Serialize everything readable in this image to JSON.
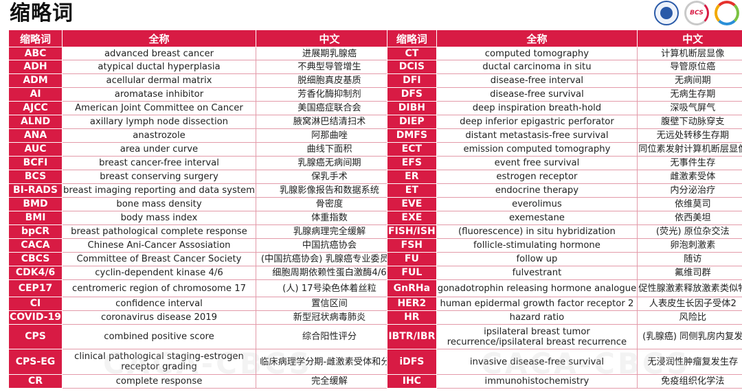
{
  "title": "缩略词",
  "headers": [
    "缩略词",
    "全称",
    "中文"
  ],
  "watermark": "CACA-CBCS",
  "left": [
    [
      "ABC",
      "advanced breast cancer",
      "进展期乳腺癌"
    ],
    [
      "ADH",
      "atypical ductal hyperplasia",
      "不典型导管增生"
    ],
    [
      "ADM",
      "acellular dermal matrix",
      "脱细胞真皮基质"
    ],
    [
      "AI",
      "aromatase inhibitor",
      "芳香化酶抑制剂"
    ],
    [
      "AJCC",
      "American Joint Committee on Cancer",
      "美国癌症联合会"
    ],
    [
      "ALND",
      "axillary lymph node dissection",
      "腋窝淋巴结清扫术"
    ],
    [
      "ANA",
      "anastrozole",
      "阿那曲唑"
    ],
    [
      "AUC",
      "area under curve",
      "曲线下面积"
    ],
    [
      "BCFI",
      "breast cancer-free interval",
      "乳腺癌无病间期"
    ],
    [
      "BCS",
      "breast conserving surgery",
      "保乳手术"
    ],
    [
      "BI-RADS",
      "breast imaging reporting and data system",
      "乳腺影像报告和数据系统"
    ],
    [
      "BMD",
      "bone mass density",
      "骨密度"
    ],
    [
      "BMI",
      "body mass index",
      "体重指数"
    ],
    [
      "bpCR",
      "breast pathological complete response",
      "乳腺病理完全缓解"
    ],
    [
      "CACA",
      "Chinese Ani-Cancer Assosiation",
      "中国抗癌协会"
    ],
    [
      "CBCS",
      "Committee of Breast Cancer Society",
      "(中国抗癌协会) 乳腺癌专业委员会"
    ],
    [
      "CDK4/6",
      "cyclin-dependent kinase 4/6",
      "细胞周期依赖性蛋白激酶4/6"
    ],
    [
      "CEP17",
      "centromeric region of chromosome 17",
      "(人) 17号染色体着丝粒"
    ],
    [
      "CI",
      "confidence interval",
      "置信区间"
    ],
    [
      "COVID-19",
      "coronavirus disease 2019",
      "新型冠状病毒肺炎"
    ],
    [
      "CPS",
      "combined positive score",
      "综合阳性评分"
    ],
    [
      "CPS-EG",
      "clinical pathological staging-estrogen receptor grading",
      "临床病理学分期-雌激素受体和分级"
    ],
    [
      "CR",
      "complete response",
      "完全缓解"
    ]
  ],
  "right": [
    [
      "CT",
      "computed tomography",
      "计算机断层显像"
    ],
    [
      "DCIS",
      "ductal carcinoma in situ",
      "导管原位癌"
    ],
    [
      "DFI",
      "disease-free interval",
      "无病间期"
    ],
    [
      "DFS",
      "disease-free survival",
      "无病生存期"
    ],
    [
      "DIBH",
      "deep inspiration breath-hold",
      "深吸气屏气"
    ],
    [
      "DIEP",
      "deep inferior epigastric perforator",
      "腹壁下动脉穿支"
    ],
    [
      "DMFS",
      "distant metastasis-free survival",
      "无远处转移生存期"
    ],
    [
      "ECT",
      "emission computed tomography",
      "同位素发射计算机断层显像"
    ],
    [
      "EFS",
      "event free survival",
      "无事件生存"
    ],
    [
      "ER",
      "estrogen receptor",
      "雌激素受体"
    ],
    [
      "ET",
      "endocrine therapy",
      "内分泌治疗"
    ],
    [
      "EVE",
      "everolimus",
      "依维莫司"
    ],
    [
      "EXE",
      "exemestane",
      "依西美坦"
    ],
    [
      "FISH/ISH",
      "(fluorescence) in situ hybridization",
      "(荧光) 原位杂交法"
    ],
    [
      "FSH",
      "follicle-stimulating hormone",
      "卵泡刺激素"
    ],
    [
      "FU",
      "follow up",
      "随访"
    ],
    [
      "FUL",
      "fulvestrant",
      "氟维司群"
    ],
    [
      "GnRHa",
      "gonadotrophin releasing hormone analogue",
      "促性腺激素释放激素类似物"
    ],
    [
      "HER2",
      "human epidermal growth factor receptor 2",
      "人表皮生长因子受体2"
    ],
    [
      "HR",
      "hazard ratio",
      "风险比"
    ],
    [
      "IBTR/IBR",
      "ipsilateral breast tumor recurrence/ipsilateral breast recurrence",
      "(乳腺癌) 同侧乳房内复发"
    ],
    [
      "iDFS",
      "invasive disease-free survival",
      "无浸润性肿瘤复发生存"
    ],
    [
      "IHC",
      "immunohistochemistry",
      "免疫组织化学法"
    ]
  ]
}
